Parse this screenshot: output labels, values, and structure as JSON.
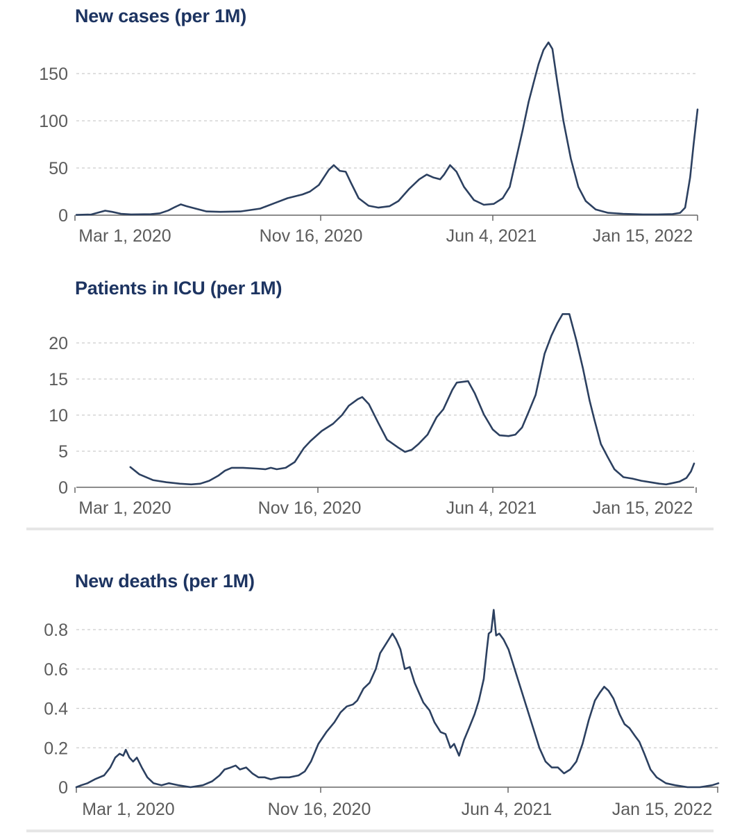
{
  "colors": {
    "line": "#2c4060",
    "title": "#1d3461",
    "grid": "#cccccc",
    "axis": "#666666",
    "tick_text": "#5b5b5b",
    "divider": "#e6e6e6"
  },
  "chart_data": [
    {
      "type": "line",
      "title": "New cases (per 1M)",
      "xlabel": "",
      "ylabel": "",
      "x_tick_labels": [
        "Mar 1, 2020",
        "Nov 16, 2020",
        "Jun 4, 2021",
        "Jan 15, 2022"
      ],
      "y_ticks": [
        0,
        50,
        100,
        150
      ],
      "ylim": [
        0,
        190
      ],
      "grid": true,
      "series": [
        {
          "name": "New cases (per 1M)",
          "points": [
            [
              0,
              0.3
            ],
            [
              30,
              0.7
            ],
            [
              42,
              2.5
            ],
            [
              58,
              4.8
            ],
            [
              72,
              3.5
            ],
            [
              90,
              1.5
            ],
            [
              110,
              0.8
            ],
            [
              150,
              1
            ],
            [
              168,
              2
            ],
            [
              185,
              5
            ],
            [
              198,
              8.5
            ],
            [
              210,
              11.5
            ],
            [
              222,
              9.5
            ],
            [
              240,
              7
            ],
            [
              262,
              4
            ],
            [
              290,
              3.5
            ],
            [
              330,
              4
            ],
            [
              370,
              7
            ],
            [
              400,
              13
            ],
            [
              425,
              18
            ],
            [
              455,
              22
            ],
            [
              470,
              25
            ],
            [
              488,
              32
            ],
            [
              508,
              48
            ],
            [
              518,
              53
            ],
            [
              530,
              47
            ],
            [
              542,
              46
            ],
            [
              552,
              35
            ],
            [
              568,
              18
            ],
            [
              588,
              10
            ],
            [
              608,
              8
            ],
            [
              630,
              9.5
            ],
            [
              648,
              15
            ],
            [
              670,
              28
            ],
            [
              690,
              38
            ],
            [
              705,
              43
            ],
            [
              718,
              40
            ],
            [
              732,
              38
            ],
            [
              740,
              43
            ],
            [
              752,
              53
            ],
            [
              765,
              46
            ],
            [
              780,
              30
            ],
            [
              800,
              16
            ],
            [
              820,
              11
            ],
            [
              840,
              12
            ],
            [
              858,
              18
            ],
            [
              872,
              30
            ],
            [
              885,
              60
            ],
            [
              898,
              90
            ],
            [
              910,
              120
            ],
            [
              920,
              140
            ],
            [
              930,
              160
            ],
            [
              940,
              175
            ],
            [
              950,
              183
            ],
            [
              958,
              176
            ],
            [
              968,
              140
            ],
            [
              980,
              100
            ],
            [
              995,
              60
            ],
            [
              1010,
              30
            ],
            [
              1025,
              15
            ],
            [
              1045,
              6
            ],
            [
              1070,
              2.5
            ],
            [
              1100,
              1.5
            ],
            [
              1140,
              0.8
            ],
            [
              1170,
              0.8
            ],
            [
              1200,
              1.2
            ],
            [
              1215,
              2.5
            ],
            [
              1225,
              8
            ],
            [
              1235,
              40
            ],
            [
              1242,
              75
            ],
            [
              1250,
              112
            ]
          ]
        }
      ]
    },
    {
      "type": "line",
      "title": "Patients in ICU (per 1M)",
      "xlabel": "",
      "ylabel": "",
      "x_tick_labels": [
        "Mar 1, 2020",
        "Nov 16, 2020",
        "Jun 4, 2021",
        "Jan 15, 2022"
      ],
      "y_ticks": [
        0,
        5,
        10,
        15,
        20
      ],
      "ylim": [
        0,
        24.5
      ],
      "grid": true,
      "series": [
        {
          "name": "Patients in ICU (per 1M)",
          "points": [
            [
              120,
              2.8
            ],
            [
              140,
              1.8
            ],
            [
              170,
              1
            ],
            [
              200,
              0.7
            ],
            [
              230,
              0.5
            ],
            [
              255,
              0.4
            ],
            [
              275,
              0.5
            ],
            [
              295,
              0.9
            ],
            [
              315,
              1.6
            ],
            [
              330,
              2.3
            ],
            [
              345,
              2.7
            ],
            [
              370,
              2.7
            ],
            [
              400,
              2.6
            ],
            [
              420,
              2.5
            ],
            [
              432,
              2.7
            ],
            [
              445,
              2.5
            ],
            [
              465,
              2.7
            ],
            [
              485,
              3.5
            ],
            [
              505,
              5.4
            ],
            [
              520,
              6.4
            ],
            [
              545,
              7.8
            ],
            [
              570,
              8.8
            ],
            [
              590,
              10
            ],
            [
              605,
              11.3
            ],
            [
              625,
              12.2
            ],
            [
              635,
              12.5
            ],
            [
              650,
              11.5
            ],
            [
              670,
              9
            ],
            [
              690,
              6.6
            ],
            [
              715,
              5.5
            ],
            [
              730,
              4.9
            ],
            [
              745,
              5.2
            ],
            [
              760,
              6
            ],
            [
              780,
              7.3
            ],
            [
              800,
              9.7
            ],
            [
              815,
              10.8
            ],
            [
              835,
              13.5
            ],
            [
              845,
              14.5
            ],
            [
              870,
              14.7
            ],
            [
              885,
              13
            ],
            [
              905,
              10.1
            ],
            [
              925,
              8
            ],
            [
              940,
              7.2
            ],
            [
              960,
              7.1
            ],
            [
              975,
              7.3
            ],
            [
              990,
              8.3
            ],
            [
              1005,
              10.5
            ],
            [
              1020,
              12.8
            ],
            [
              1040,
              18.5
            ],
            [
              1055,
              21
            ],
            [
              1068,
              22.7
            ],
            [
              1080,
              24
            ],
            [
              1095,
              24
            ],
            [
              1110,
              20.5
            ],
            [
              1125,
              16.5
            ],
            [
              1140,
              12
            ],
            [
              1150,
              9.5
            ],
            [
              1165,
              6
            ],
            [
              1180,
              4.2
            ],
            [
              1195,
              2.5
            ],
            [
              1215,
              1.4
            ],
            [
              1235,
              1.2
            ],
            [
              1255,
              0.9
            ],
            [
              1275,
              0.7
            ],
            [
              1295,
              0.5
            ],
            [
              1310,
              0.4
            ],
            [
              1325,
              0.6
            ],
            [
              1340,
              0.8
            ],
            [
              1355,
              1.3
            ],
            [
              1365,
              2.2
            ],
            [
              1372,
              3.3
            ]
          ]
        }
      ]
    },
    {
      "type": "line",
      "title": "New deaths (per 1M)",
      "xlabel": "",
      "ylabel": "",
      "x_tick_labels": [
        "Mar 1, 2020",
        "Nov 16, 2020",
        "Jun 4, 2021",
        "Jan 15, 2022"
      ],
      "y_ticks": [
        "0",
        "0.2",
        "0.4",
        "0.6",
        "0.8"
      ],
      "ylim": [
        0,
        0.9
      ],
      "grid": true,
      "series": [
        {
          "name": "New deaths (per 1M)",
          "points": [
            [
              0,
              0
            ],
            [
              8,
              0.01
            ],
            [
              18,
              0.02
            ],
            [
              30,
              0.04
            ],
            [
              45,
              0.06
            ],
            [
              55,
              0.1
            ],
            [
              63,
              0.15
            ],
            [
              70,
              0.17
            ],
            [
              76,
              0.16
            ],
            [
              80,
              0.19
            ],
            [
              86,
              0.15
            ],
            [
              92,
              0.13
            ],
            [
              98,
              0.15
            ],
            [
              106,
              0.1
            ],
            [
              115,
              0.05
            ],
            [
              125,
              0.02
            ],
            [
              138,
              0.01
            ],
            [
              150,
              0.02
            ],
            [
              165,
              0.01
            ],
            [
              185,
              0.0
            ],
            [
              205,
              0.01
            ],
            [
              220,
              0.03
            ],
            [
              232,
              0.06
            ],
            [
              240,
              0.09
            ],
            [
              250,
              0.1
            ],
            [
              258,
              0.11
            ],
            [
              265,
              0.09
            ],
            [
              275,
              0.1
            ],
            [
              285,
              0.07
            ],
            [
              295,
              0.05
            ],
            [
              305,
              0.05
            ],
            [
              315,
              0.04
            ],
            [
              330,
              0.05
            ],
            [
              345,
              0.05
            ],
            [
              360,
              0.06
            ],
            [
              370,
              0.08
            ],
            [
              380,
              0.13
            ],
            [
              392,
              0.22
            ],
            [
              405,
              0.28
            ],
            [
              418,
              0.33
            ],
            [
              428,
              0.38
            ],
            [
              438,
              0.41
            ],
            [
              448,
              0.42
            ],
            [
              455,
              0.44
            ],
            [
              465,
              0.5
            ],
            [
              475,
              0.53
            ],
            [
              485,
              0.6
            ],
            [
              492,
              0.68
            ],
            [
              502,
              0.73
            ],
            [
              512,
              0.78
            ],
            [
              518,
              0.75
            ],
            [
              525,
              0.7
            ],
            [
              532,
              0.6
            ],
            [
              540,
              0.61
            ],
            [
              548,
              0.53
            ],
            [
              555,
              0.48
            ],
            [
              562,
              0.43
            ],
            [
              572,
              0.39
            ],
            [
              580,
              0.33
            ],
            [
              590,
              0.28
            ],
            [
              598,
              0.27
            ],
            [
              606,
              0.2
            ],
            [
              612,
              0.22
            ],
            [
              620,
              0.16
            ],
            [
              628,
              0.24
            ],
            [
              636,
              0.3
            ],
            [
              645,
              0.37
            ],
            [
              652,
              0.44
            ],
            [
              660,
              0.55
            ],
            [
              665,
              0.7
            ],
            [
              668,
              0.78
            ],
            [
              672,
              0.79
            ],
            [
              676,
              0.9
            ],
            [
              680,
              0.77
            ],
            [
              685,
              0.78
            ],
            [
              692,
              0.75
            ],
            [
              700,
              0.7
            ],
            [
              710,
              0.6
            ],
            [
              720,
              0.5
            ],
            [
              730,
              0.4
            ],
            [
              740,
              0.3
            ],
            [
              750,
              0.2
            ],
            [
              760,
              0.13
            ],
            [
              770,
              0.1
            ],
            [
              780,
              0.1
            ],
            [
              790,
              0.07
            ],
            [
              800,
              0.09
            ],
            [
              810,
              0.13
            ],
            [
              820,
              0.22
            ],
            [
              830,
              0.34
            ],
            [
              840,
              0.44
            ],
            [
              848,
              0.48
            ],
            [
              855,
              0.51
            ],
            [
              862,
              0.49
            ],
            [
              870,
              0.45
            ],
            [
              880,
              0.37
            ],
            [
              888,
              0.32
            ],
            [
              896,
              0.3
            ],
            [
              905,
              0.26
            ],
            [
              912,
              0.23
            ],
            [
              920,
              0.17
            ],
            [
              930,
              0.09
            ],
            [
              940,
              0.05
            ],
            [
              955,
              0.02
            ],
            [
              970,
              0.01
            ],
            [
              990,
              0.0
            ],
            [
              1010,
              0.0
            ],
            [
              1030,
              0.01
            ],
            [
              1040,
              0.02
            ]
          ]
        }
      ]
    }
  ]
}
